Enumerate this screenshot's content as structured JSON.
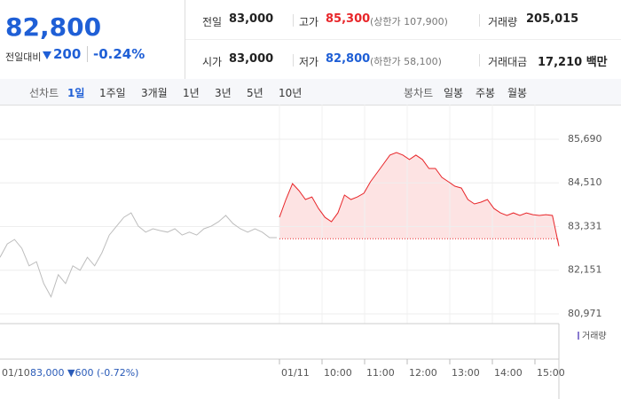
{
  "header": {
    "price": "82,800",
    "change_label": "전일대비",
    "change": "200",
    "change_rate": "-0.24%"
  },
  "stats": [
    {
      "label": "전일",
      "value": "83,000"
    },
    {
      "label": "고가",
      "value": "85,300",
      "note": "(상한가 107,900)"
    },
    {
      "label": "거래량",
      "value": "205,015"
    },
    {
      "label": "시가",
      "value": "83,000"
    },
    {
      "label": "저가",
      "value": "82,800",
      "note": "(하한가 58,100)"
    },
    {
      "label": "거래대금",
      "value": "17,210 백만"
    }
  ],
  "tabs": {
    "line_label": "선차트",
    "line": [
      "1일",
      "1주일",
      "3개월",
      "1년",
      "3년",
      "5년",
      "10년"
    ],
    "candle_label": "봉차트",
    "candle": [
      "일봉",
      "주봉",
      "월봉"
    ]
  },
  "chart_data": {
    "type": "line",
    "ylim": [
      80707,
      86624
    ],
    "yticks": [
      {
        "value": 85690,
        "label": "85,690"
      },
      {
        "value": 84510,
        "label": "84,510"
      },
      {
        "value": 83331,
        "label": "83,331"
      },
      {
        "value": 82151,
        "label": "82,151"
      },
      {
        "value": 80971,
        "label": "80,971"
      }
    ],
    "baseline": 83000,
    "x_labels": [
      "01/11",
      "10:00",
      "11:00",
      "12:00",
      "13:00",
      "14:00",
      "15:00"
    ],
    "series": [
      {
        "color": "#bdbdbd",
        "values": [
          82500,
          82860,
          82980,
          82740,
          82270,
          82380,
          81790,
          81430,
          82030,
          81790,
          82270,
          82150,
          82500,
          82270,
          82620,
          83100,
          83340,
          83580,
          83700,
          83340,
          83180,
          83270,
          83220,
          83180,
          83270,
          83100,
          83180,
          83100,
          83270,
          83340,
          83460,
          83630,
          83410,
          83270,
          83180,
          83270,
          83180,
          83030,
          83030
        ]
      },
      {
        "color": "#e8262a",
        "area": "#fde3e3",
        "values": [
          83580,
          84060,
          84490,
          84300,
          84060,
          84130,
          83820,
          83580,
          83460,
          83700,
          84180,
          84060,
          84130,
          84230,
          84540,
          84780,
          85020,
          85260,
          85330,
          85260,
          85140,
          85260,
          85140,
          84900,
          84900,
          84660,
          84540,
          84420,
          84370,
          84060,
          83940,
          83990,
          84060,
          83820,
          83700,
          83630,
          83700,
          83630,
          83700,
          83650,
          83630,
          83650,
          83630,
          82800
        ]
      }
    ]
  },
  "footer": {
    "date": "01/10",
    "info": "83,000 ▼600 (-0.72%)",
    "volume_label": "거래량"
  }
}
